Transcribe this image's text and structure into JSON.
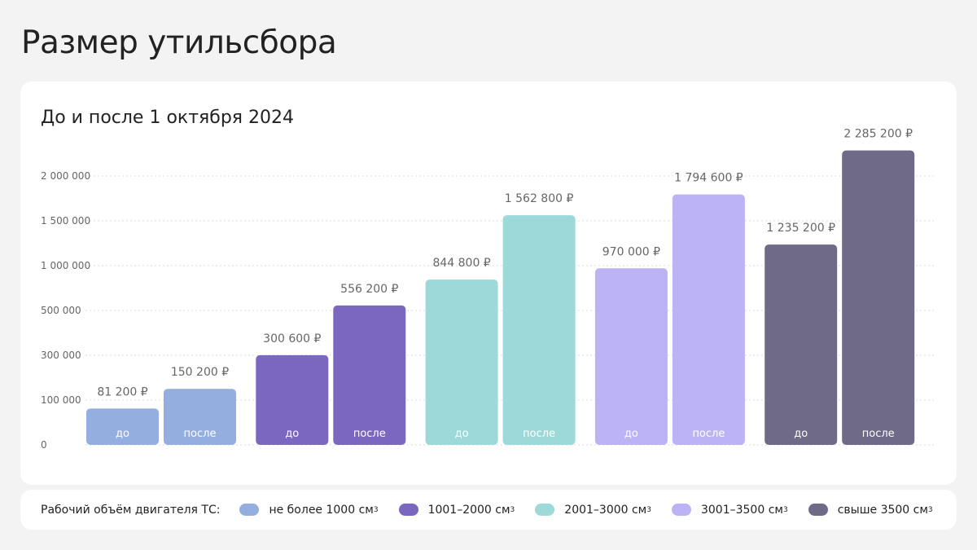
{
  "page": {
    "title": "Размер утильсбора"
  },
  "chart_data": {
    "type": "bar",
    "title": "До и после 1 октября 2024",
    "y_ticks": [
      "0",
      "100 000",
      "300 000",
      "500 000",
      "1 000 000",
      "1 500 000",
      "2 000 000"
    ],
    "categories": [
      "не более 1000 см³",
      "1001–2000 см³",
      "2001–3000 см³",
      "3001–3500 см³",
      "свыше 3500 см³"
    ],
    "bar_labels": [
      "до",
      "после"
    ],
    "series": [
      {
        "name": "до",
        "values": [
          81200,
          300600,
          844800,
          970000,
          1235200
        ]
      },
      {
        "name": "после",
        "values": [
          150200,
          556200,
          1562800,
          1794600,
          2285200
        ]
      }
    ],
    "value_labels": [
      [
        "81 200 ₽",
        "150 200 ₽"
      ],
      [
        "300 600 ₽",
        "556 200 ₽"
      ],
      [
        "844 800 ₽",
        "1 562 800 ₽"
      ],
      [
        "970 000 ₽",
        "1 794 600 ₽"
      ],
      [
        "1 235 200 ₽",
        "2 285 200 ₽"
      ]
    ],
    "colors": [
      "#94aee0",
      "#7b66c0",
      "#9dd9d8",
      "#bcb3f5",
      "#6f6a88"
    ],
    "grid": true,
    "legend": "bottom"
  },
  "legend": {
    "title": "Рабочий объём двигателя ТС:",
    "items": [
      {
        "label": "не более 1000 см",
        "sup": "3",
        "color": "#94aee0"
      },
      {
        "label": "1001–2000 см",
        "sup": "3",
        "color": "#7b66c0"
      },
      {
        "label": "2001–3000 см",
        "sup": "3",
        "color": "#9dd9d8"
      },
      {
        "label": "3001–3500 см",
        "sup": "3",
        "color": "#bcb3f5"
      },
      {
        "label": "свыше 3500 см",
        "sup": "3",
        "color": "#6f6a88"
      }
    ]
  }
}
